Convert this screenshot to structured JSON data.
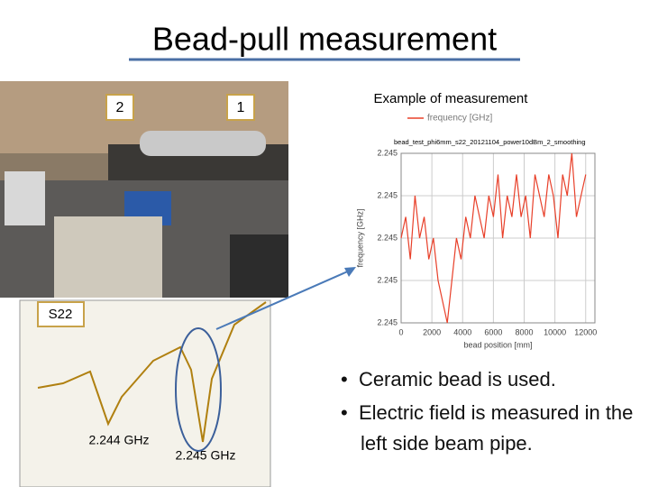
{
  "title": "Bead-pull measurement",
  "photo": {
    "labels": [
      "2",
      "1"
    ]
  },
  "vna": {
    "port": "S22",
    "peaks": [
      "2.244 GHz",
      "2.245 GHz"
    ]
  },
  "caption": "Example of measurement",
  "chart_data": {
    "type": "line",
    "title": "bead_test_phi6mm_s22_20121104_power10dBm_2_smoothing",
    "xlabel": "bead position [mm]",
    "ylabel": "frequency [GHz]",
    "x": [
      0,
      300,
      600,
      900,
      1200,
      1500,
      1800,
      2100,
      2400,
      2700,
      3000,
      3300,
      3600,
      3900,
      4200,
      4500,
      4800,
      5100,
      5400,
      5700,
      6000,
      6300,
      6600,
      6900,
      7200,
      7500,
      7800,
      8100,
      8400,
      8700,
      9000,
      9300,
      9600,
      9900,
      10200,
      10500,
      10800,
      11100,
      11400,
      11700,
      12000
    ],
    "series": [
      {
        "name": "frequency [GHz]",
        "color": "#e8402a",
        "values": [
          2.245,
          2.24501,
          2.24499,
          2.24502,
          2.245,
          2.24501,
          2.24499,
          2.245,
          2.24498,
          2.24497,
          2.24496,
          2.24498,
          2.245,
          2.24499,
          2.24501,
          2.245,
          2.24502,
          2.24501,
          2.245,
          2.24502,
          2.24501,
          2.24503,
          2.245,
          2.24502,
          2.24501,
          2.24503,
          2.24501,
          2.24502,
          2.245,
          2.24503,
          2.24502,
          2.24501,
          2.24503,
          2.24502,
          2.245,
          2.24503,
          2.24502,
          2.24504,
          2.24501,
          2.24502,
          2.24503
        ]
      }
    ],
    "xlim": [
      0,
      12600
    ],
    "xticks": [
      0,
      2000,
      4000,
      6000,
      8000,
      10000,
      12000
    ],
    "ylim": [
      2.24496,
      2.24504
    ],
    "yticks": [
      {
        "value": 2.24496,
        "label": "2.245"
      },
      {
        "value": 2.24498,
        "label": "2.245"
      },
      {
        "value": 2.245,
        "label": "2.245"
      },
      {
        "value": 2.24502,
        "label": "2.245"
      },
      {
        "value": 2.24504,
        "label": "2.245"
      }
    ],
    "grid": true
  },
  "bullets": [
    "Ceramic bead is used.",
    "Electric field is measured in the left side beam pipe."
  ]
}
